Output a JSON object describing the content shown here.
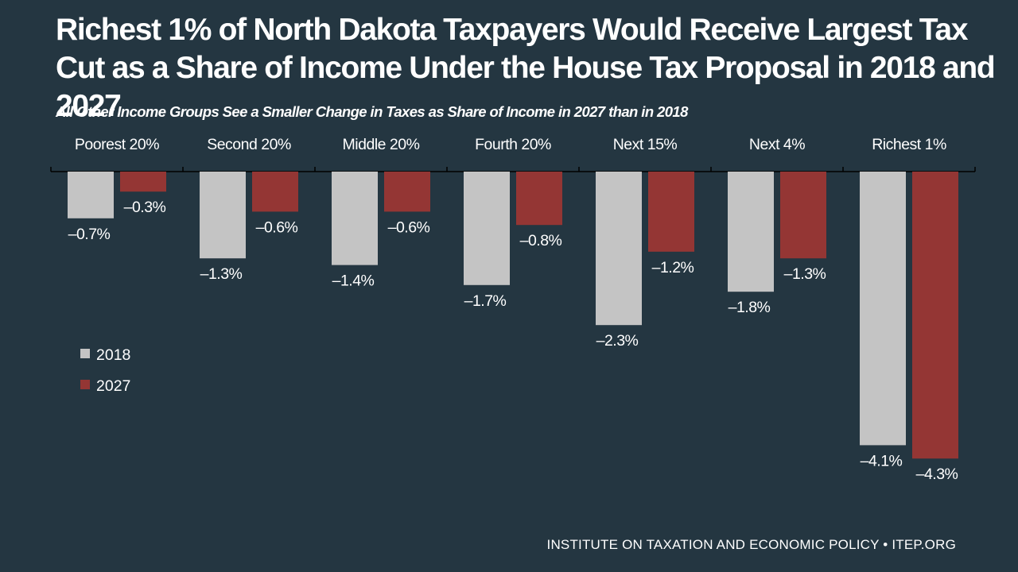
{
  "header": {
    "title": "Richest 1% of North Dakota Taxpayers Would Receive Largest Tax Cut as a Share of Income Under the House Tax Proposal in 2018 and 2027",
    "subtitle": "All Other Income Groups See a Smaller Change in Taxes as Share of Income in 2027 than in 2018"
  },
  "footer": {
    "source": "INSTITUTE ON TAXATION AND ECONOMIC POLICY • ITEP.ORG"
  },
  "colors": {
    "background": "#243641",
    "series_2018": "#c4c4c4",
    "series_2027": "#943634",
    "text": "#ffffff"
  },
  "chart_data": {
    "type": "bar",
    "orientation": "vertical",
    "categories": [
      "Poorest 20%",
      "Second 20%",
      "Middle 20%",
      "Fourth 20%",
      "Next 15%",
      "Next 4%",
      "Richest 1%"
    ],
    "series": [
      {
        "name": "2018",
        "values": [
          -0.7,
          -1.3,
          -1.4,
          -1.7,
          -2.3,
          -1.8,
          -4.1
        ],
        "labels": [
          "–0.7%",
          "–1.3%",
          "–1.4%",
          "–1.7%",
          "–2.3%",
          "–1.8%",
          "–4.1%"
        ]
      },
      {
        "name": "2027",
        "values": [
          -0.3,
          -0.6,
          -0.6,
          -0.8,
          -1.2,
          -1.3,
          -4.3
        ],
        "labels": [
          "–0.3%",
          "–0.6%",
          "–0.6%",
          "–0.8%",
          "–1.2%",
          "–1.3%",
          "–4.3%"
        ]
      }
    ],
    "unit": "%",
    "ylim": [
      -4.3,
      0
    ],
    "grid": false,
    "category_labels_position": "top",
    "legend_position": "left-middle"
  }
}
